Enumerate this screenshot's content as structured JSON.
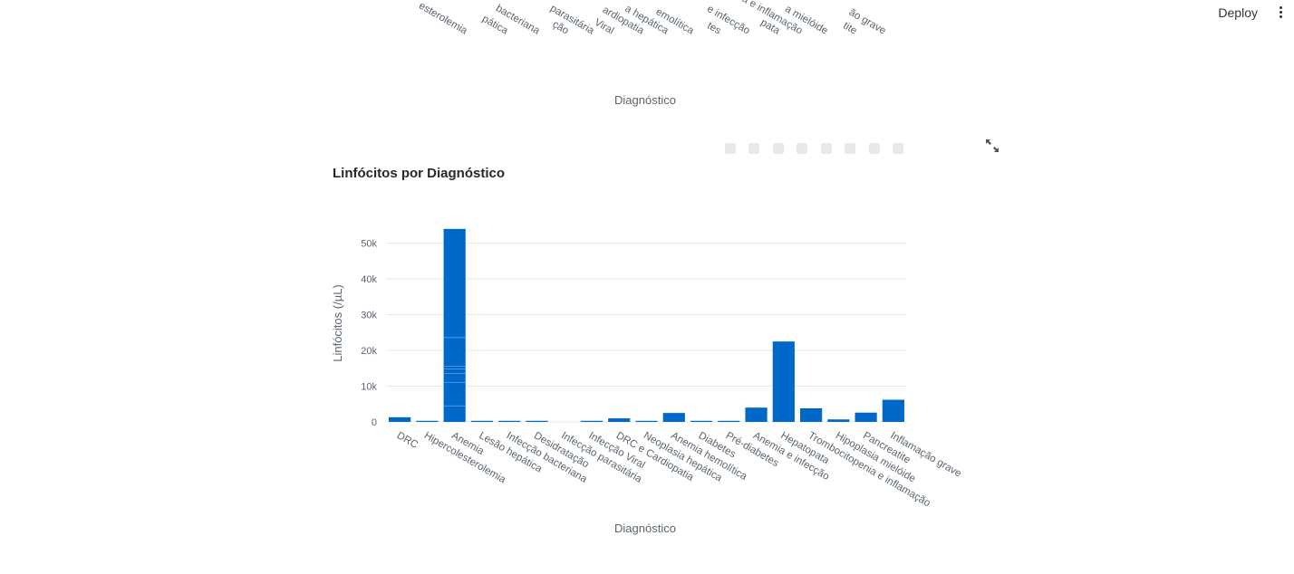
{
  "toolbar": {
    "deploy_label": "Deploy",
    "menu_icon": "vertical-ellipsis-icon",
    "fullscreen_icon": "expand-icon"
  },
  "previous_chart": {
    "xlabel": "Diagnóstico",
    "visible_tick_fragments": [
      "esterolemia",
      "pática",
      "bacteriana",
      "ção",
      "parasitária",
      "Viral",
      "ardiopatia",
      "a hepática",
      "emolítica",
      "tes",
      "e infecção",
      "pata",
      "citopenia e inflamação",
      "a mielóide",
      "tite",
      "ão grave"
    ]
  },
  "chart_data": {
    "type": "bar",
    "title": "Linfócitos por Diagnóstico",
    "xlabel": "Diagnóstico",
    "ylabel": "Linfócitos (/µL)",
    "bar_color": "#0068c9",
    "grid": true,
    "ylim": [
      0,
      57000
    ],
    "yticks": [
      0,
      10000,
      20000,
      30000,
      40000,
      50000
    ],
    "ytick_labels": [
      "0",
      "10k",
      "20k",
      "30k",
      "40k",
      "50k"
    ],
    "categories": [
      "DRC",
      "Hipercolesterolemia",
      "Anemia",
      "Lesão hepática",
      "Infecção bacteriana",
      "Desidratação",
      "Infecção parasitária",
      "Infecção Viral",
      "DRC e Cardiopatia",
      "Neoplasia hepática",
      "Anemia hemolítica",
      "Diabetes",
      "Pré-diabetes",
      "Anemia e infecção",
      "Hepatopata",
      "Trombocitopenia e inflamação",
      "Hipoplasia mielóide",
      "Pancreatite",
      "Inflamação grave"
    ],
    "values": [
      1300,
      300,
      54000,
      300,
      300,
      300,
      0,
      300,
      1000,
      300,
      2500,
      300,
      300,
      4000,
      22500,
      3800,
      700,
      2600,
      6200
    ],
    "stack_segments": {
      "Anemia": [
        4500,
        6500,
        2500,
        1300,
        800,
        8000,
        30400
      ]
    }
  }
}
